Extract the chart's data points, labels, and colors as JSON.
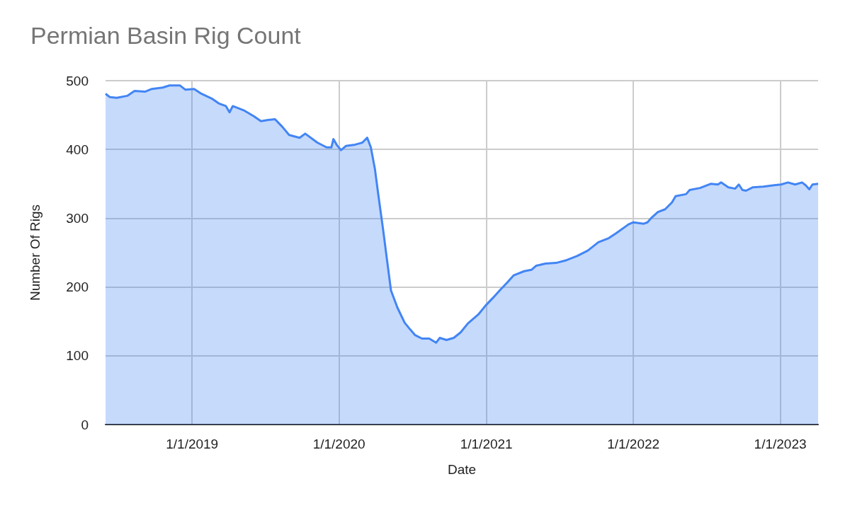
{
  "chart_data": {
    "type": "area",
    "title": "Permian Basin Rig Count",
    "xlabel": "Date",
    "ylabel": "Number Of Rigs",
    "x": [
      "2018-05-31",
      "2018-06-11",
      "2018-06-28",
      "2018-07-24",
      "2018-08-11",
      "2018-09-06",
      "2018-09-23",
      "2018-10-20",
      "2018-11-06",
      "2018-12-02",
      "2018-12-15",
      "2019-01-06",
      "2019-01-24",
      "2019-02-19",
      "2019-03-08",
      "2019-03-26",
      "2019-04-04",
      "2019-04-12",
      "2019-05-09",
      "2019-06-04",
      "2019-06-21",
      "2019-07-09",
      "2019-07-26",
      "2019-08-13",
      "2019-08-30",
      "2019-09-25",
      "2019-10-09",
      "2019-11-08",
      "2019-12-01",
      "2019-12-13",
      "2019-12-18",
      "2019-12-27",
      "2020-01-06",
      "2020-01-18",
      "2020-02-10",
      "2020-02-28",
      "2020-03-11",
      "2020-03-20",
      "2020-03-30",
      "2020-04-08",
      "2020-04-20",
      "2020-04-29",
      "2020-05-09",
      "2020-05-25",
      "2020-06-12",
      "2020-06-26",
      "2020-07-08",
      "2020-07-25",
      "2020-08-12",
      "2020-08-29",
      "2020-09-07",
      "2020-09-24",
      "2020-10-12",
      "2020-10-29",
      "2020-11-16",
      "2020-12-12",
      "2020-12-30",
      "2021-01-17",
      "2021-02-03",
      "2021-02-21",
      "2021-03-10",
      "2021-04-05",
      "2021-04-23",
      "2021-05-05",
      "2021-05-28",
      "2021-06-23",
      "2021-07-19",
      "2021-08-14",
      "2021-09-10",
      "2021-10-06",
      "2021-11-01",
      "2021-11-19",
      "2021-12-20",
      "2022-01-01",
      "2022-01-27",
      "2022-02-05",
      "2022-02-14",
      "2022-03-03",
      "2022-03-21",
      "2022-04-07",
      "2022-04-16",
      "2022-05-12",
      "2022-05-21",
      "2022-06-16",
      "2022-07-12",
      "2022-07-30",
      "2022-08-07",
      "2022-08-25",
      "2022-09-11",
      "2022-09-20",
      "2022-09-29",
      "2022-10-08",
      "2022-10-25",
      "2022-11-20",
      "2022-12-17",
      "2023-01-03",
      "2023-01-20",
      "2023-02-07",
      "2023-02-24",
      "2023-03-05",
      "2023-03-14",
      "2023-03-22",
      "2023-04-05"
    ],
    "series": [
      {
        "color": "#4285f4",
        "values": [
          481,
          476,
          475,
          478,
          485,
          484,
          488,
          490,
          493,
          493,
          487,
          488,
          481,
          474,
          467,
          463,
          454,
          463,
          457,
          448,
          441,
          443,
          444,
          433,
          421,
          417,
          423,
          410,
          403,
          403,
          415,
          406,
          399,
          405,
          407,
          410,
          417,
          403,
          372,
          332,
          281,
          240,
          195,
          170,
          148,
          138,
          130,
          125,
          125,
          119,
          126,
          123,
          126,
          134,
          147,
          160,
          173,
          184,
          195,
          206,
          217,
          223,
          225,
          231,
          234,
          235,
          239,
          245,
          253,
          265,
          271,
          278,
          291,
          294,
          292,
          294,
          300,
          309,
          313,
          323,
          332,
          335,
          341,
          344,
          350,
          349,
          352,
          345,
          343,
          349,
          341,
          340,
          345,
          346,
          348,
          349,
          352,
          349,
          352,
          348,
          342,
          349,
          350
        ]
      }
    ],
    "xlim": [
      "2018-05-31",
      "2023-04-05"
    ],
    "xticks": [
      {
        "value": "2019-01-01",
        "label": "1/1/2019"
      },
      {
        "value": "2020-01-01",
        "label": "1/1/2020"
      },
      {
        "value": "2021-01-01",
        "label": "1/1/2021"
      },
      {
        "value": "2022-01-01",
        "label": "1/1/2022"
      },
      {
        "value": "2023-01-01",
        "label": "1/1/2023"
      }
    ],
    "ylim": [
      0,
      500
    ],
    "yticks": [
      0,
      100,
      200,
      300,
      400,
      500
    ],
    "grid": true
  }
}
